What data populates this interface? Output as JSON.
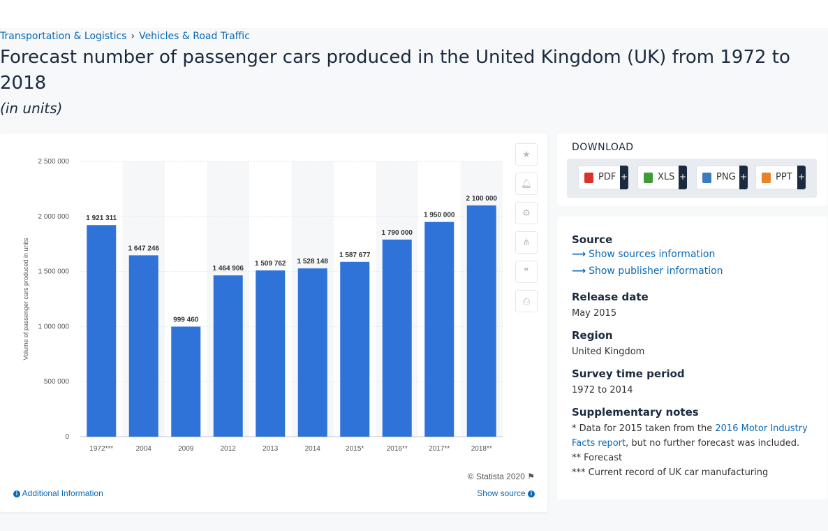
{
  "breadcrumb": [
    "Transportation & Logistics",
    "Vehicles & Road Traffic"
  ],
  "breadcrumb_sep": "›",
  "title": "Forecast number of passenger cars produced in the United Kingdom (UK) from 1972 to 2018",
  "subtitle": "(in units)",
  "chart_data": {
    "type": "bar",
    "categories": [
      "1972***",
      "2004",
      "2009",
      "2012",
      "2013",
      "2014",
      "2015*",
      "2016**",
      "2017**",
      "2018**"
    ],
    "values": [
      1921311,
      1647246,
      999460,
      1464906,
      1509762,
      1528148,
      1587677,
      1790000,
      1950000,
      2100000
    ],
    "data_labels": [
      "1 921 311",
      "1 647 246",
      "999 460",
      "1 464 906",
      "1 509 762",
      "1 528 148",
      "1 587 677",
      "1 790 000",
      "1 950 000",
      "2 100 000"
    ],
    "yticks": [
      0,
      500000,
      1000000,
      1500000,
      2000000,
      2500000
    ],
    "ytick_labels": [
      "0",
      "500 000",
      "1 000 000",
      "1 500 000",
      "2 000 000",
      "2 500 000"
    ],
    "ylim": [
      0,
      2500000
    ],
    "ylabel": "Volume of passenger cars produced in units",
    "xlabel": "",
    "bar_color": "#2f73d9",
    "grid": true
  },
  "toolbar": [
    "star-icon",
    "bell-icon",
    "gear-icon",
    "share-icon",
    "quote-icon",
    "print-icon"
  ],
  "copyright": "© Statista 2020",
  "additional_info": "Additional Information",
  "show_source": "Show source",
  "download": {
    "title": "DOWNLOAD",
    "buttons": [
      {
        "label": "PDF",
        "color": "#d9342b"
      },
      {
        "label": "XLS",
        "color": "#3f9c35"
      },
      {
        "label": "PNG",
        "color": "#3b7bbf"
      },
      {
        "label": "PPT",
        "color": "#e9832b"
      }
    ],
    "plus": "+"
  },
  "meta": {
    "source_h": "Source",
    "source_link1": "Show sources information",
    "source_link2": "Show publisher information",
    "release_h": "Release date",
    "release_v": "May 2015",
    "region_h": "Region",
    "region_v": "United Kingdom",
    "survey_h": "Survey time period",
    "survey_v": "1972 to 2014",
    "notes_h": "Supplementary notes",
    "note1_a": "* Data for 2015 taken from the ",
    "note1_link": "2016 Motor Industry Facts report",
    "note1_b": ", but no further forecast was included.",
    "note2": "** Forecast",
    "note3": "*** Current record of UK car manufacturing"
  }
}
